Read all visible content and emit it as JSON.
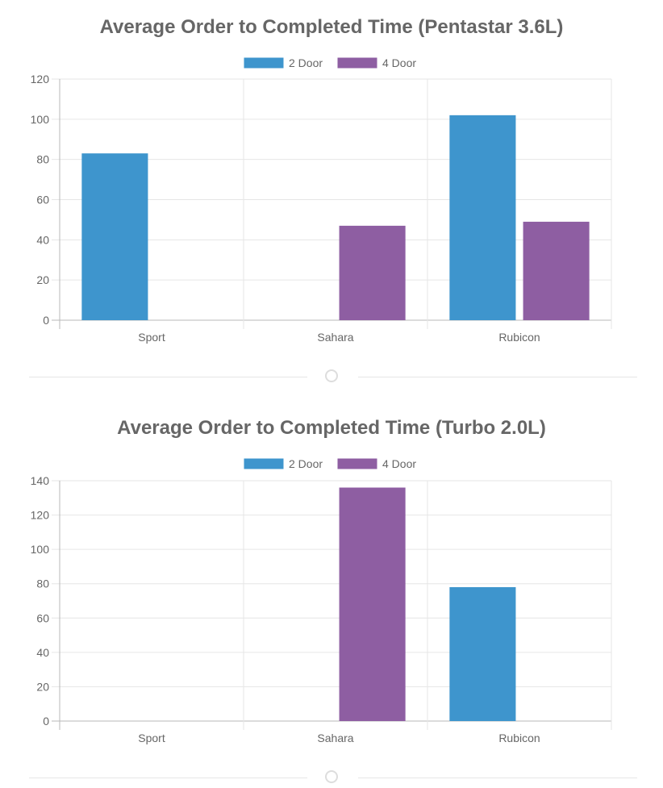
{
  "chart_data": [
    {
      "type": "bar",
      "title": "Average Order to Completed Time (Pentastar 3.6L)",
      "categories": [
        "Sport",
        "Sahara",
        "Rubicon"
      ],
      "series": [
        {
          "name": "2 Door",
          "color": "#3e95cd",
          "values": [
            83,
            null,
            102
          ]
        },
        {
          "name": "4 Door",
          "color": "#8e5ea2",
          "values": [
            null,
            47,
            49
          ]
        }
      ],
      "ylim": [
        0,
        120
      ],
      "yticks": [
        "0",
        "20",
        "40",
        "60",
        "80",
        "100",
        "120"
      ],
      "legend_position": "top",
      "grid": true
    },
    {
      "type": "bar",
      "title": "Average Order to Completed Time (Turbo 2.0L)",
      "categories": [
        "Sport",
        "Sahara",
        "Rubicon"
      ],
      "series": [
        {
          "name": "2 Door",
          "color": "#3e95cd",
          "values": [
            null,
            null,
            78
          ]
        },
        {
          "name": "4 Door",
          "color": "#8e5ea2",
          "values": [
            null,
            136,
            null
          ]
        }
      ],
      "ylim": [
        0,
        140
      ],
      "yticks": [
        "0",
        "20",
        "40",
        "60",
        "80",
        "100",
        "120",
        "140"
      ],
      "legend_position": "top",
      "grid": true
    }
  ]
}
